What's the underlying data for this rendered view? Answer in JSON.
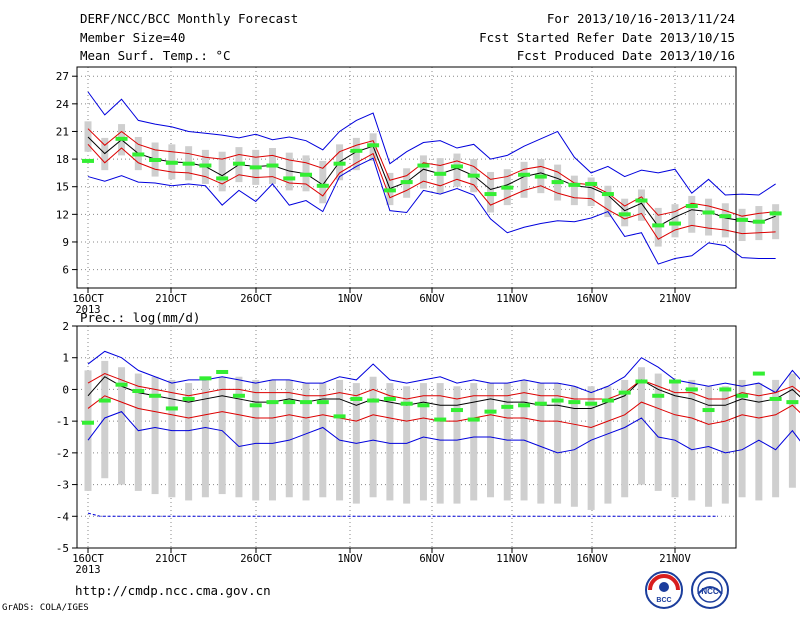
{
  "header": {
    "title": "DERF/NCC/BCC Monthly Forecast",
    "member": "Member Size=40",
    "variable": "Mean Surf. Temp.: °C",
    "period": "For 2013/10/16-2013/11/24",
    "started": "Fcst Started Refer Date 2013/10/15",
    "produced": "Fcst Produced Date 2013/10/16"
  },
  "footer": {
    "url": "http://cmdp.ncc.cma.gov.cn",
    "grads": "GrADS: COLA/IGES",
    "logo_left_text": "BCC",
    "logo_right_text": "NCC"
  },
  "colors": {
    "envelope": "#0000dd",
    "bounds": "#dd0000",
    "mean": "#000000",
    "member_box": "#cfcfcf",
    "highlight": "#33ee33",
    "grid": "#888888"
  },
  "chart_data": [
    {
      "type": "line",
      "title": "Mean Surf. Temp.: °C",
      "x_tick_labels": [
        "16OCT",
        "21OCT",
        "26OCT",
        "1NOV",
        "6NOV",
        "11NOV",
        "16NOV",
        "21NOV"
      ],
      "x_year_label": "2013",
      "ylim": [
        4,
        28
      ],
      "yticks": [
        6,
        9,
        12,
        15,
        18,
        21,
        24,
        27
      ],
      "grid": true,
      "day_count": 40,
      "series": [
        {
          "role": "envelope_max",
          "values": [
            25.3,
            22.8,
            24.5,
            22.2,
            21.8,
            21.5,
            21.0,
            20.8,
            20.6,
            20.3,
            20.7,
            20.1,
            20.4,
            20.0,
            19.0,
            21.0,
            22.2,
            23.0,
            17.5,
            18.8,
            19.8,
            20.0,
            19.2,
            19.6,
            18.0,
            18.4,
            19.4,
            20.2,
            21.0,
            18.2,
            16.5,
            17.2,
            16.1,
            16.8,
            16.5,
            16.9,
            14.3,
            15.8,
            14.1,
            14.2,
            14.1,
            15.3
          ]
        },
        {
          "role": "upper",
          "values": [
            21.3,
            19.5,
            21.0,
            19.6,
            19.0,
            18.8,
            18.6,
            18.2,
            18.0,
            18.5,
            18.2,
            18.4,
            17.9,
            17.6,
            17.0,
            18.8,
            19.5,
            20.0,
            15.7,
            16.2,
            17.6,
            17.3,
            17.8,
            17.2,
            15.8,
            16.1,
            16.9,
            17.2,
            16.6,
            15.4,
            15.2,
            14.3,
            12.9,
            13.9,
            11.9,
            12.3,
            13.2,
            12.9,
            12.4,
            11.8,
            12.1,
            12.3
          ]
        },
        {
          "role": "mean",
          "values": [
            20.4,
            18.6,
            20.1,
            18.6,
            18.0,
            17.7,
            17.6,
            17.2,
            16.2,
            17.4,
            17.2,
            17.3,
            16.7,
            16.4,
            15.2,
            17.7,
            18.8,
            19.4,
            14.8,
            15.5,
            16.9,
            16.4,
            17.0,
            16.2,
            14.7,
            15.2,
            16.1,
            16.5,
            15.9,
            15.1,
            14.9,
            14.1,
            12.4,
            13.2,
            10.7,
            11.7,
            12.5,
            12.3,
            11.6,
            11.3,
            11.1,
            11.8
          ]
        },
        {
          "role": "lower",
          "values": [
            19.6,
            17.6,
            19.2,
            17.6,
            16.9,
            16.6,
            16.5,
            16.1,
            15.3,
            16.3,
            16.0,
            16.1,
            15.4,
            15.3,
            14.0,
            16.5,
            17.6,
            18.6,
            13.8,
            14.6,
            15.6,
            15.1,
            15.8,
            15.2,
            13.0,
            13.8,
            14.6,
            15.1,
            14.3,
            13.8,
            13.7,
            12.5,
            11.5,
            12.1,
            9.3,
            10.3,
            10.8,
            10.5,
            10.3,
            9.9,
            10.0,
            10.1
          ]
        },
        {
          "role": "envelope_min",
          "values": [
            16.1,
            15.6,
            16.2,
            15.5,
            15.4,
            15.1,
            15.3,
            15.1,
            13.0,
            14.6,
            13.4,
            15.3,
            13.0,
            13.5,
            12.3,
            16.1,
            17.2,
            18.1,
            12.4,
            12.2,
            14.6,
            14.2,
            14.8,
            14.1,
            11.5,
            10.0,
            10.6,
            11.0,
            11.3,
            11.2,
            11.6,
            12.3,
            9.6,
            10.0,
            6.6,
            7.2,
            7.5,
            8.9,
            8.6,
            7.3,
            7.2,
            7.2
          ]
        },
        {
          "role": "highlight",
          "values": [
            17.8,
            null,
            20.2,
            18.5,
            17.9,
            17.6,
            17.5,
            17.3,
            15.9,
            17.5,
            17.1,
            17.3,
            15.9,
            16.3,
            15.1,
            17.5,
            18.9,
            19.5,
            14.6,
            15.5,
            17.3,
            16.4,
            17.2,
            16.2,
            14.2,
            14.9,
            16.3,
            16.1,
            15.5,
            15.2,
            15.3,
            14.2,
            12.0,
            13.5,
            10.8,
            11.0,
            12.9,
            12.2,
            11.8,
            11.4,
            11.2,
            12.1
          ]
        }
      ]
    },
    {
      "type": "line",
      "title": "Prec.: log(mm/d)",
      "x_tick_labels": [
        "16OCT",
        "21OCT",
        "26OCT",
        "1NOV",
        "6NOV",
        "11NOV",
        "16NOV",
        "21NOV"
      ],
      "x_year_label": "2013",
      "ylim": [
        -5,
        2
      ],
      "yticks": [
        -5,
        -4,
        -3,
        -2,
        -1,
        0,
        1,
        2
      ],
      "grid": true,
      "day_count": 40,
      "series": [
        {
          "role": "envelope_max",
          "values": [
            0.8,
            1.2,
            1.0,
            0.6,
            0.4,
            0.2,
            0.3,
            0.3,
            0.4,
            0.3,
            0.2,
            0.3,
            0.3,
            0.2,
            0.2,
            0.4,
            0.3,
            0.8,
            0.3,
            0.2,
            0.3,
            0.4,
            0.2,
            0.3,
            0.2,
            0.2,
            0.3,
            0.2,
            0.2,
            0.1,
            -0.1,
            0.1,
            0.4,
            1.0,
            0.7,
            0.3,
            0.2,
            0.1,
            0.2,
            0.1,
            0.2,
            -0.1,
            0.6,
            0.0,
            0.0
          ]
        },
        {
          "role": "upper",
          "values": [
            0.2,
            0.5,
            0.3,
            0.1,
            0.0,
            -0.1,
            -0.2,
            -0.1,
            0.0,
            0.0,
            -0.1,
            -0.1,
            -0.1,
            -0.2,
            -0.2,
            -0.1,
            -0.2,
            0.0,
            -0.2,
            -0.3,
            -0.2,
            -0.2,
            -0.3,
            -0.2,
            -0.2,
            -0.2,
            -0.1,
            -0.2,
            -0.2,
            -0.3,
            -0.3,
            -0.3,
            -0.1,
            0.3,
            0.1,
            -0.1,
            -0.1,
            -0.3,
            -0.3,
            -0.1,
            -0.2,
            -0.1,
            0.1,
            -0.3,
            -0.2
          ]
        },
        {
          "role": "mean",
          "values": [
            -0.2,
            0.4,
            0.1,
            -0.1,
            -0.2,
            -0.3,
            -0.4,
            -0.3,
            -0.2,
            -0.3,
            -0.4,
            -0.4,
            -0.3,
            -0.4,
            -0.3,
            -0.3,
            -0.5,
            -0.3,
            -0.4,
            -0.5,
            -0.4,
            -0.5,
            -0.5,
            -0.4,
            -0.3,
            -0.4,
            -0.4,
            -0.5,
            -0.5,
            -0.6,
            -0.6,
            -0.4,
            -0.2,
            0.3,
            0.0,
            -0.2,
            -0.3,
            -0.5,
            -0.5,
            -0.3,
            -0.4,
            -0.3,
            0.0,
            -0.5,
            -0.4
          ]
        },
        {
          "role": "lower",
          "values": [
            -0.6,
            -0.2,
            -0.4,
            -0.6,
            -0.7,
            -0.8,
            -0.9,
            -0.8,
            -0.7,
            -0.8,
            -0.9,
            -0.9,
            -0.8,
            -0.9,
            -0.8,
            -0.9,
            -1.0,
            -0.8,
            -0.9,
            -1.0,
            -0.9,
            -1.0,
            -1.0,
            -0.9,
            -0.8,
            -0.9,
            -0.9,
            -1.0,
            -1.0,
            -1.1,
            -1.2,
            -1.0,
            -0.8,
            -0.4,
            -0.6,
            -0.8,
            -0.9,
            -1.1,
            -1.0,
            -0.8,
            -0.9,
            -0.8,
            -0.5,
            -1.0,
            -0.9
          ]
        },
        {
          "role": "envelope_min",
          "values": [
            -1.6,
            -0.9,
            -0.7,
            -1.3,
            -1.2,
            -1.3,
            -1.3,
            -1.2,
            -1.3,
            -1.8,
            -1.7,
            -1.7,
            -1.6,
            -1.4,
            -1.2,
            -1.6,
            -1.7,
            -1.6,
            -1.7,
            -1.7,
            -1.5,
            -1.6,
            -1.6,
            -1.5,
            -1.5,
            -1.6,
            -1.6,
            -1.8,
            -2.0,
            -1.9,
            -1.6,
            -1.4,
            -1.2,
            -0.9,
            -1.5,
            -1.6,
            -1.9,
            -1.8,
            -2.0,
            -1.9,
            -1.6,
            -1.9,
            -1.3,
            -2.0,
            -1.9
          ]
        },
        {
          "role": "highlight",
          "values": [
            -1.05,
            -0.35,
            0.15,
            -0.05,
            -0.2,
            -0.6,
            -0.3,
            0.35,
            0.55,
            -0.2,
            -0.5,
            -0.4,
            -0.4,
            -0.4,
            -0.4,
            -0.85,
            -0.3,
            -0.35,
            -0.3,
            -0.45,
            -0.5,
            -0.95,
            -0.65,
            -0.95,
            -0.7,
            -0.55,
            -0.5,
            -0.45,
            -0.35,
            -0.4,
            -0.45,
            -0.35,
            -0.1,
            0.25,
            -0.2,
            0.25,
            0.0,
            -0.65,
            0.0,
            -0.2,
            0.5,
            -0.3,
            -0.4
          ]
        }
      ]
    }
  ]
}
